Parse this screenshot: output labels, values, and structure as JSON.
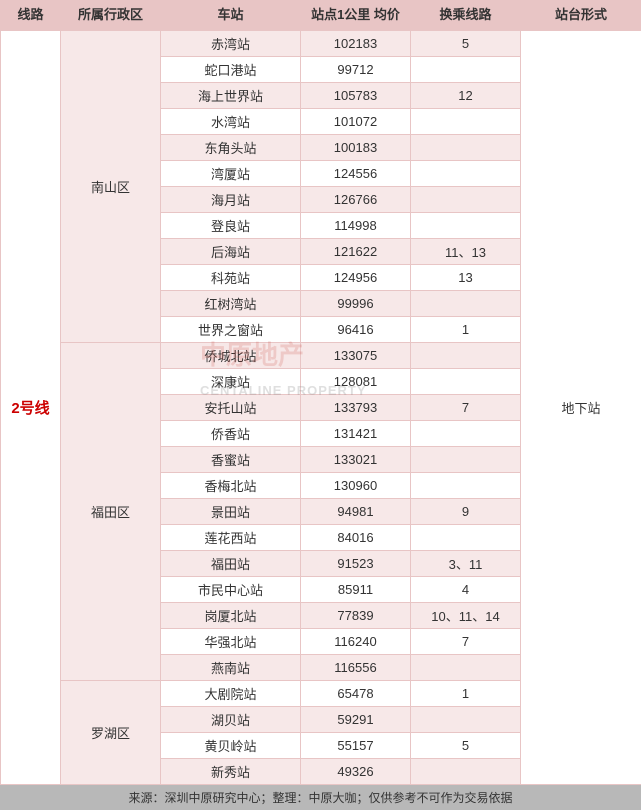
{
  "headers": {
    "line": "线路",
    "district": "所属行政区",
    "station": "车站",
    "price": "站点1公里\n均价",
    "transfer": "换乘线路",
    "platform": "站台形式"
  },
  "line_label": "2号线",
  "platform_label": "地下站",
  "districts": [
    {
      "name": "南山区",
      "stations": [
        {
          "name": "赤湾站",
          "price": "102183",
          "transfer": "5",
          "alt": true
        },
        {
          "name": "蛇口港站",
          "price": "99712",
          "transfer": "",
          "alt": false
        },
        {
          "name": "海上世界站",
          "price": "105783",
          "transfer": "12",
          "alt": true
        },
        {
          "name": "水湾站",
          "price": "101072",
          "transfer": "",
          "alt": false
        },
        {
          "name": "东角头站",
          "price": "100183",
          "transfer": "",
          "alt": true
        },
        {
          "name": "湾厦站",
          "price": "124556",
          "transfer": "",
          "alt": false
        },
        {
          "name": "海月站",
          "price": "126766",
          "transfer": "",
          "alt": true
        },
        {
          "name": "登良站",
          "price": "114998",
          "transfer": "",
          "alt": false
        },
        {
          "name": "后海站",
          "price": "121622",
          "transfer": "11、13",
          "alt": true
        },
        {
          "name": "科苑站",
          "price": "124956",
          "transfer": "13",
          "alt": false
        },
        {
          "name": "红树湾站",
          "price": "99996",
          "transfer": "",
          "alt": true
        },
        {
          "name": "世界之窗站",
          "price": "96416",
          "transfer": "1",
          "alt": false
        }
      ]
    },
    {
      "name": "福田区",
      "stations": [
        {
          "name": "侨城北站",
          "price": "133075",
          "transfer": "",
          "alt": true
        },
        {
          "name": "深康站",
          "price": "128081",
          "transfer": "",
          "alt": false
        },
        {
          "name": "安托山站",
          "price": "133793",
          "transfer": "7",
          "alt": true
        },
        {
          "name": "侨香站",
          "price": "131421",
          "transfer": "",
          "alt": false
        },
        {
          "name": "香蜜站",
          "price": "133021",
          "transfer": "",
          "alt": true
        },
        {
          "name": "香梅北站",
          "price": "130960",
          "transfer": "",
          "alt": false
        },
        {
          "name": "景田站",
          "price": "94981",
          "transfer": "9",
          "alt": true
        },
        {
          "name": "莲花西站",
          "price": "84016",
          "transfer": "",
          "alt": false
        },
        {
          "name": "福田站",
          "price": "91523",
          "transfer": "3、11",
          "alt": true
        },
        {
          "name": "市民中心站",
          "price": "85911",
          "transfer": "4",
          "alt": false
        },
        {
          "name": "岗厦北站",
          "price": "77839",
          "transfer": "10、11、14",
          "alt": true
        },
        {
          "name": "华强北站",
          "price": "116240",
          "transfer": "7",
          "alt": false
        },
        {
          "name": "燕南站",
          "price": "116556",
          "transfer": "",
          "alt": true
        }
      ]
    },
    {
      "name": "罗湖区",
      "stations": [
        {
          "name": "大剧院站",
          "price": "65478",
          "transfer": "1",
          "alt": false
        },
        {
          "name": "湖贝站",
          "price": "59291",
          "transfer": "",
          "alt": true
        },
        {
          "name": "黄贝岭站",
          "price": "55157",
          "transfer": "5",
          "alt": false
        },
        {
          "name": "新秀站",
          "price": "49326",
          "transfer": "",
          "alt": true
        }
      ]
    }
  ],
  "footer_text": "来源：深圳中原研究中心；整理：中原大咖；仅供参考不可作为交易依据",
  "watermark": {
    "main": "中原地产",
    "sub": "CENTALINE PROPERTY"
  },
  "colors": {
    "header_bg": "#e8c5c5",
    "alt_bg": "#f7e8e8",
    "line_color": "#c00",
    "footer_bg": "#b8b8b8"
  }
}
